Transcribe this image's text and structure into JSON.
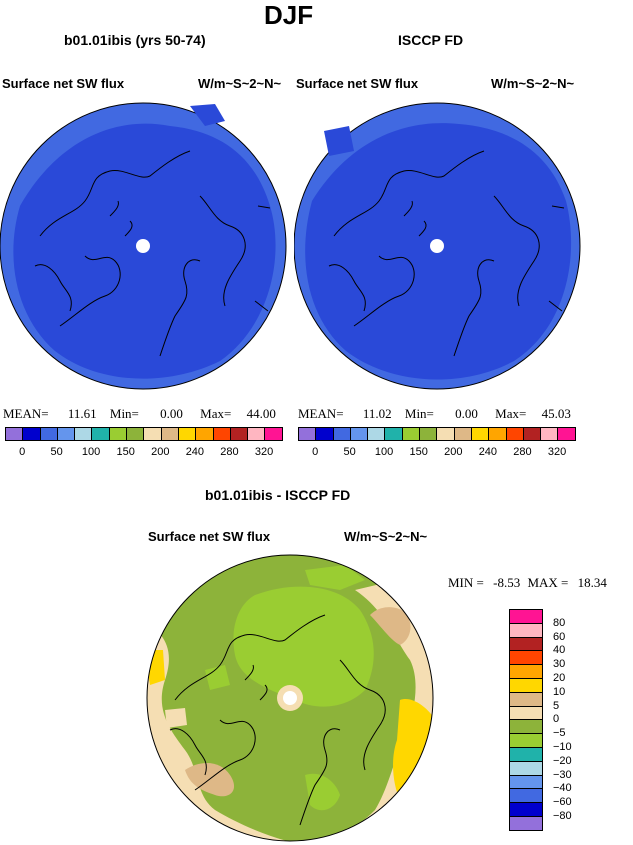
{
  "page": {
    "season": "DJF",
    "diff_title": "b01.01ibis - ISCCP FD"
  },
  "panels": [
    {
      "title": "b01.01ibis (yrs 50-74)",
      "left_label": "Surface net SW flux",
      "right_label": "W/m~S~2~N~",
      "stats": {
        "mean_label": "MEAN=",
        "mean": "11.61",
        "min_label": "Min=",
        "min": "0.00",
        "max_label": "Max=",
        "max": "44.00"
      }
    },
    {
      "title": "ISCCP FD",
      "left_label": "Surface net SW flux",
      "right_label": "W/m~S~2~N~",
      "stats": {
        "mean_label": "MEAN=",
        "mean": "11.02",
        "min_label": "Min=",
        "min": "0.00",
        "max_label": "Max=",
        "max": "45.03"
      }
    },
    {
      "title": "b01.01ibis - ISCCP FD",
      "left_label": "Surface net SW flux",
      "right_label": "W/m~S~2~N~",
      "stats": {
        "min_label": "MIN =",
        "min": "-8.53",
        "max_label": "MAX =",
        "max": "18.34"
      }
    }
  ],
  "colorbar_abs": {
    "colors": [
      "#9370db",
      "#0000cd",
      "#4169e1",
      "#6495ed",
      "#add8e6",
      "#20b2aa",
      "#9acd32",
      "#8db33a",
      "#f5deb3",
      "#deb887",
      "#ffd700",
      "#ffa500",
      "#ff4500",
      "#b22222",
      "#ffb6c1",
      "#ff1493"
    ],
    "labels": [
      "0",
      "50",
      "100",
      "150",
      "200",
      "240",
      "280",
      "320"
    ]
  },
  "colorbar_diff": {
    "colors": [
      "#ff1493",
      "#ffb6c1",
      "#b22222",
      "#ff4500",
      "#ffa500",
      "#ffd700",
      "#deb887",
      "#f5deb3",
      "#8db33a",
      "#9acd32",
      "#20b2aa",
      "#add8e6",
      "#6495ed",
      "#4169e1",
      "#0000cd",
      "#9370db"
    ],
    "labels": [
      "80",
      "60",
      "40",
      "30",
      "20",
      "10",
      "5",
      "0",
      "-5",
      "-10",
      "-20",
      "-30",
      "-40",
      "-60",
      "-80"
    ]
  },
  "map_colors": {
    "abs_main": "#2a49d8",
    "abs_edge": "#4169e1",
    "pole": "#ffffff",
    "diff_green": "#8db33a",
    "diff_light_green": "#9acd32",
    "diff_wheat": "#f5deb3",
    "diff_tan": "#deb887",
    "diff_yellow": "#ffd700"
  }
}
